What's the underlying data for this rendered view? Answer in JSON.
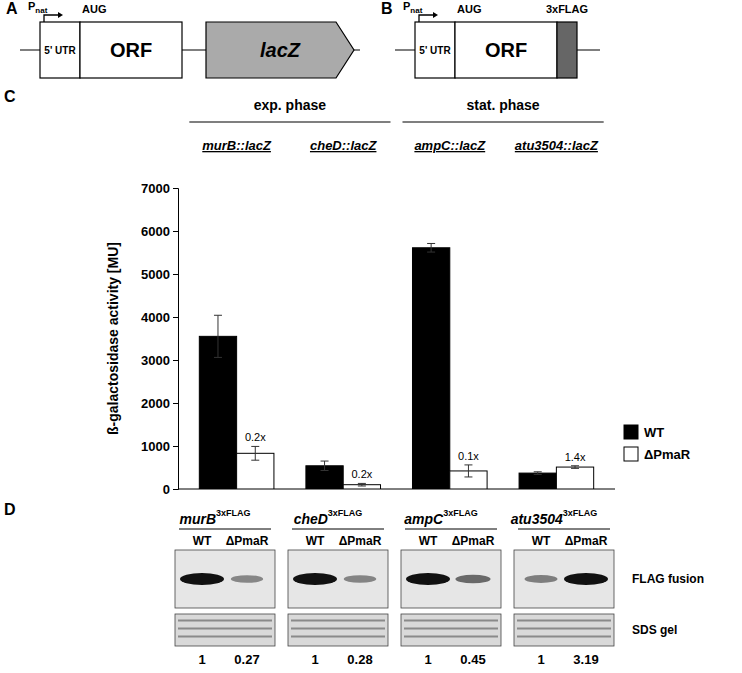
{
  "chart_data": {
    "type": "bar",
    "panel_label": "C",
    "y_label": "ß-galactosidase activity [MU]",
    "categories": [
      "murB::lacZ",
      "cheD::lacZ",
      "ampC::lacZ",
      "atu3504::lacZ"
    ],
    "groups": [
      {
        "label": "exp. phase",
        "members": [
          "murB::lacZ",
          "cheD::lacZ"
        ]
      },
      {
        "label": "stat. phase",
        "members": [
          "ampC::lacZ",
          "atu3504::lacZ"
        ]
      }
    ],
    "series": [
      {
        "name": "WT",
        "color": "#000000",
        "values": [
          3550,
          540,
          5610,
          370
        ],
        "errors": [
          490,
          110,
          100,
          30
        ]
      },
      {
        "name": "ΔPmaR",
        "color": "#ffffff",
        "values": [
          830,
          100,
          420,
          510
        ],
        "errors": [
          160,
          30,
          140,
          30
        ],
        "ratios": [
          0.2,
          0.2,
          0.1,
          1.4
        ],
        "ratio_labels": [
          "0.2x",
          "0.2x",
          "0.1x",
          "1.4x"
        ]
      }
    ],
    "ylim": [
      0,
      7000
    ],
    "yticks": [
      0,
      1000,
      2000,
      3000,
      4000,
      5000,
      6000,
      7000
    ],
    "legend": "right"
  },
  "diagrams": [
    {
      "panel_label": "A",
      "promoter": "P",
      "promoter_sub": "nat",
      "start_codon": "AUG",
      "utr": "5' UTR",
      "orf": "ORF",
      "fusion": "lacZ"
    },
    {
      "panel_label": "B",
      "promoter": "P",
      "promoter_sub": "nat",
      "start_codon": "AUG",
      "utr": "5' UTR",
      "orf": "ORF",
      "tag": "3xFLAG"
    }
  ],
  "western_blots": {
    "panel_label": "D",
    "lanes": [
      "WT",
      "ΔPmaR"
    ],
    "rows": [
      "FLAG fusion",
      "SDS gel"
    ],
    "blots": [
      {
        "gene": "murB",
        "tag": "3xFLAG",
        "values": [
          1,
          0.27
        ]
      },
      {
        "gene": "cheD",
        "tag": "3xFLAG",
        "values": [
          1,
          0.28
        ]
      },
      {
        "gene": "ampC",
        "tag": "3xFLAG",
        "values": [
          1,
          0.45
        ]
      },
      {
        "gene": "atu3504",
        "tag": "3xFLAG",
        "values": [
          1,
          3.19
        ]
      }
    ]
  }
}
